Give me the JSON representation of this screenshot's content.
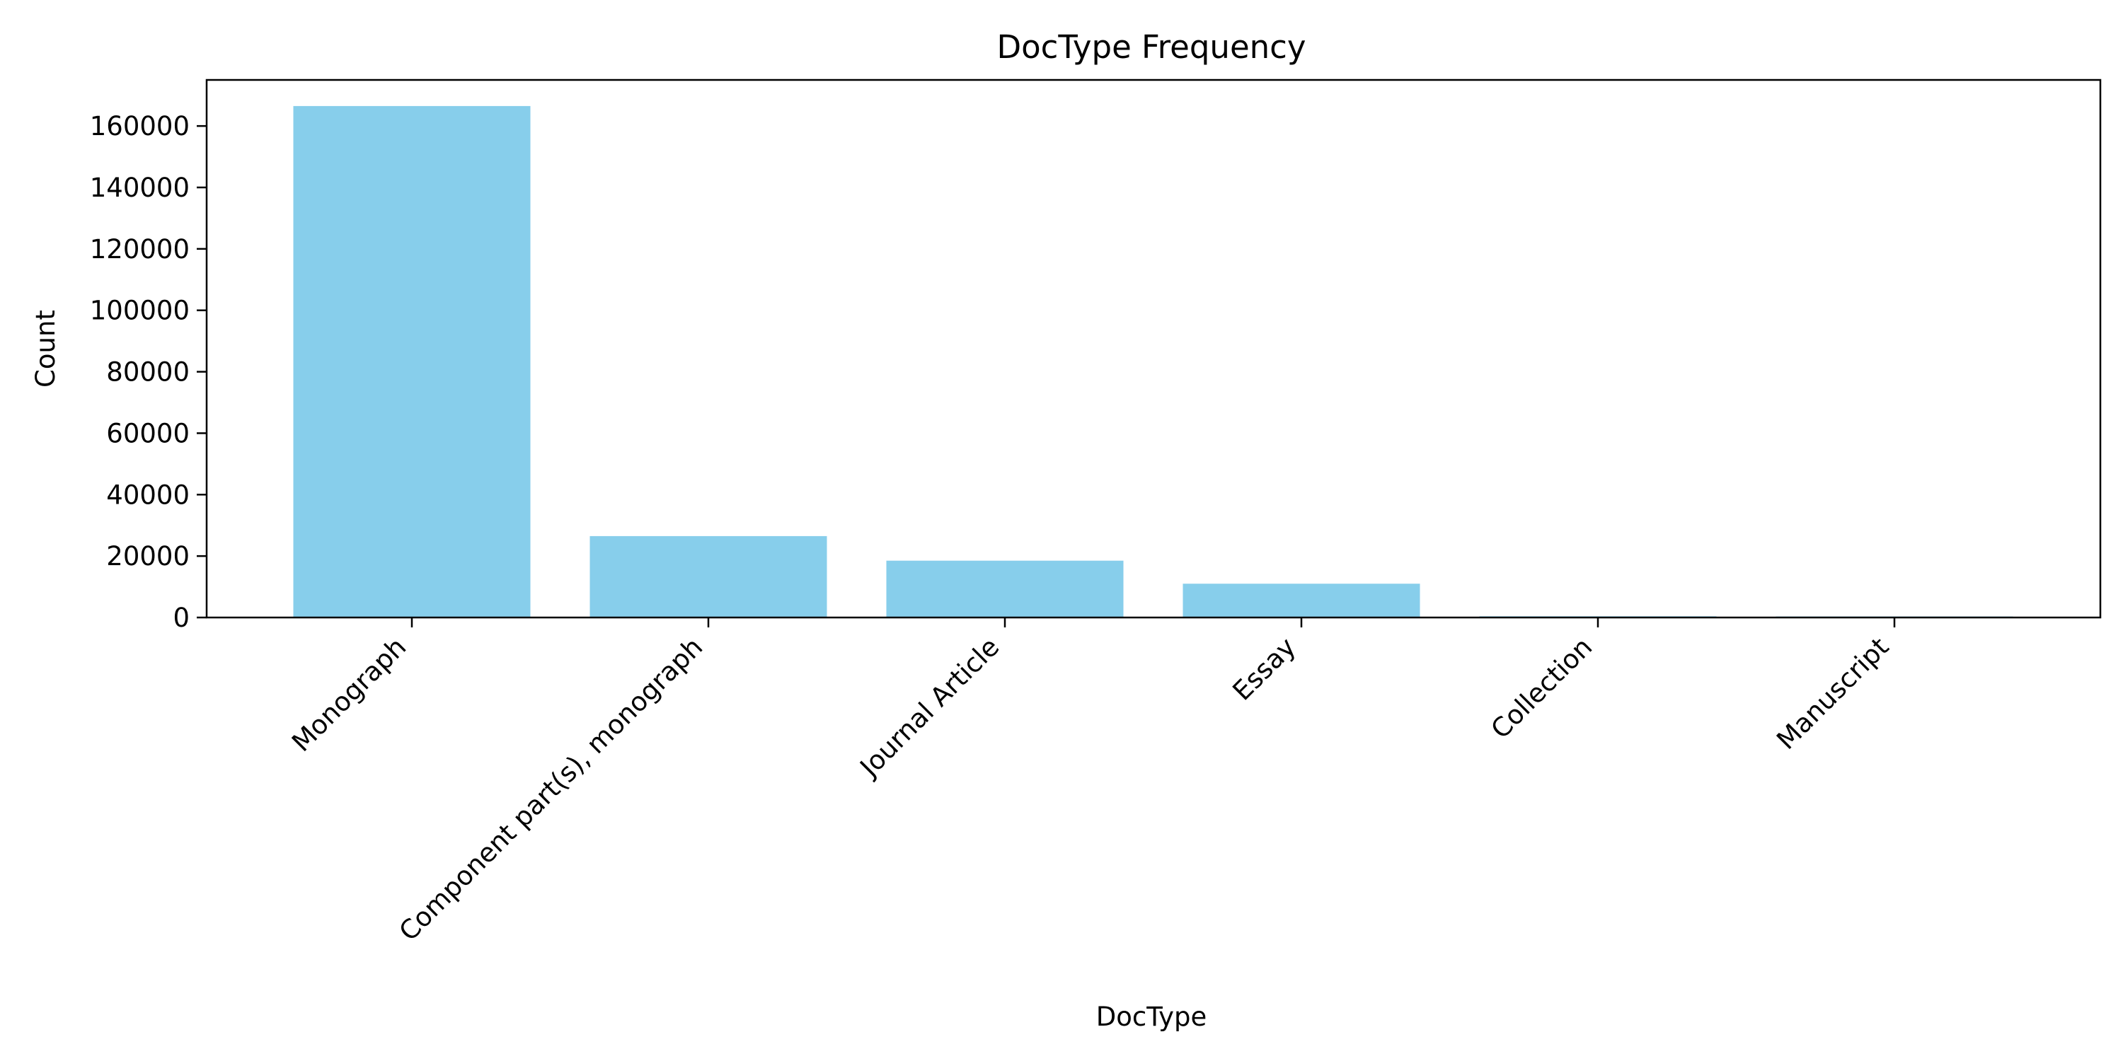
{
  "chart_data": {
    "type": "bar",
    "title": "DocType Frequency",
    "xlabel": "DocType",
    "ylabel": "Count",
    "categories": [
      "Monograph",
      "Component part(s), monograph",
      "Journal Article",
      "Essay",
      "Collection",
      "Manuscript"
    ],
    "values": [
      166500,
      26500,
      18500,
      11000,
      400,
      80
    ],
    "ylim": [
      0,
      175000
    ],
    "yticks": [
      0,
      20000,
      40000,
      60000,
      80000,
      100000,
      120000,
      140000,
      160000
    ],
    "ytick_labels": [
      "0",
      "20000",
      "40000",
      "60000",
      "80000",
      "100000",
      "120000",
      "140000",
      "160000"
    ],
    "bar_color": "#87CEEB",
    "grid": false,
    "legend": "none"
  }
}
